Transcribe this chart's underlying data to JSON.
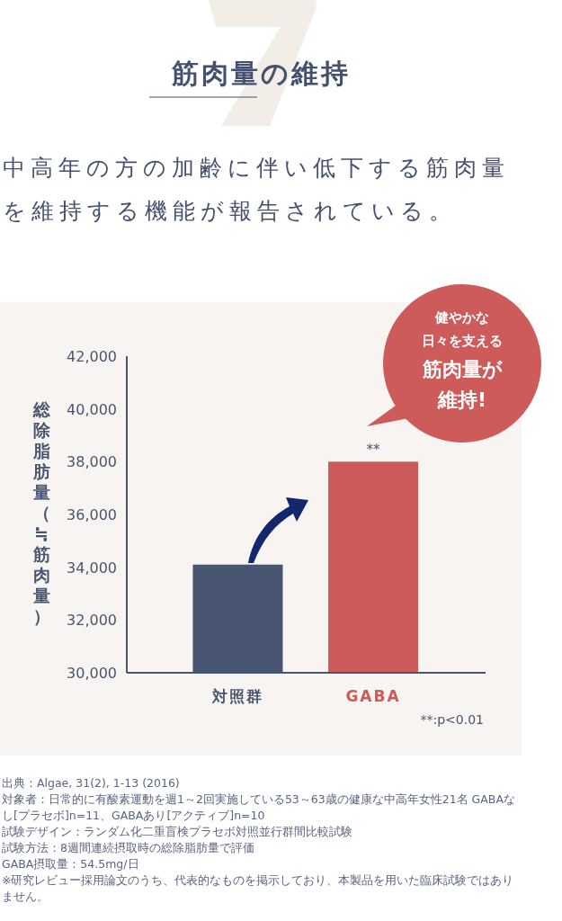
{
  "chart_data": {
    "type": "bar",
    "title": "筋肉量の維持",
    "subtitle": "中高年の方の加齢に伴い低下する筋肉量を維持する機能が報告されている。",
    "ylabel": "総除脂肪量（≒筋肉量）",
    "categories": [
      "対照群",
      "GABA"
    ],
    "values": [
      34100,
      38000
    ],
    "colors": [
      "#485672",
      "#cc5b5a"
    ],
    "ylim": [
      30000,
      42000
    ],
    "yticks": [
      {
        "value": 30000,
        "label": "30,000"
      },
      {
        "value": 32000,
        "label": "32,000"
      },
      {
        "value": 34000,
        "label": "34,000"
      },
      {
        "value": 36000,
        "label": "36,000"
      },
      {
        "value": 38000,
        "label": "38,000"
      },
      {
        "value": 40000,
        "label": "40,000"
      },
      {
        "value": 42000,
        "label": "42,000"
      }
    ],
    "grid": false,
    "annotations": [
      {
        "text": "**",
        "x": "GABA",
        "y": 38000
      },
      "健やかな日々を支える筋肉量が維持!",
      "**:p<0.01",
      "出典：Algae, 31(2), 1-13 (2016)",
      "対象者：日常的に有酸素運動を週1～2回実施している53～63歳の健康な中高年女性21名 GABAなし[プラセボ]n=11、GABAあり[アクティブ]n=10",
      "試験デザイン：ランダム化二重盲検プラセボ対照並行群間比較試験",
      "試験方法：8週間連続摂取時の総除脂肪量で評価",
      "GABA摂取量：54.5mg/日",
      "※研究レビュー採用論文のうち、代表的なものを掲示しており、本製品を用いた臨床試験ではありません。"
    ]
  }
}
